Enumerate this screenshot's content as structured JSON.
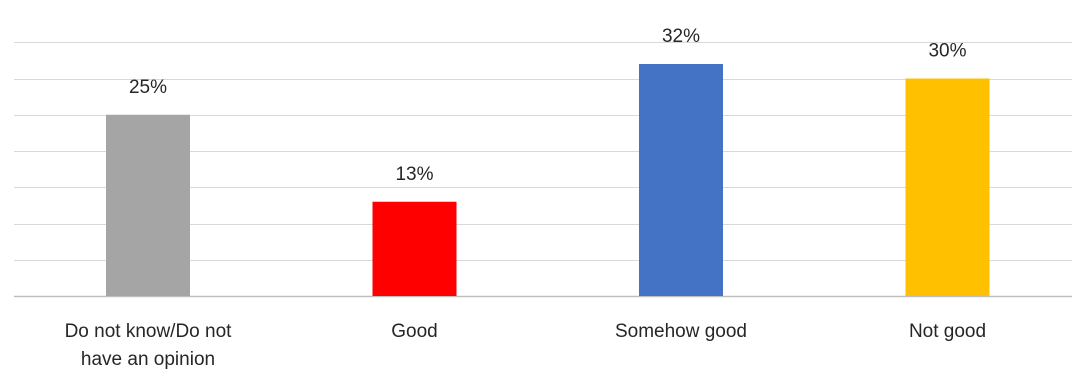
{
  "chart_data": {
    "type": "bar",
    "title": "",
    "xlabel": "",
    "ylabel": "",
    "categories": [
      [
        "Do not know/Do not",
        "have an opinion"
      ],
      [
        "Good"
      ],
      [
        "Somehow good"
      ],
      [
        "Not good"
      ]
    ],
    "values": [
      25,
      13,
      32,
      30
    ],
    "value_labels": [
      "25%",
      "13%",
      "32%",
      "30%"
    ],
    "colors": [
      "#a5a5a5",
      "#ff0000",
      "#4472c4",
      "#ffc000"
    ],
    "ylim": [
      0,
      35
    ],
    "grid_step": 5,
    "grid": true,
    "legend": false
  }
}
